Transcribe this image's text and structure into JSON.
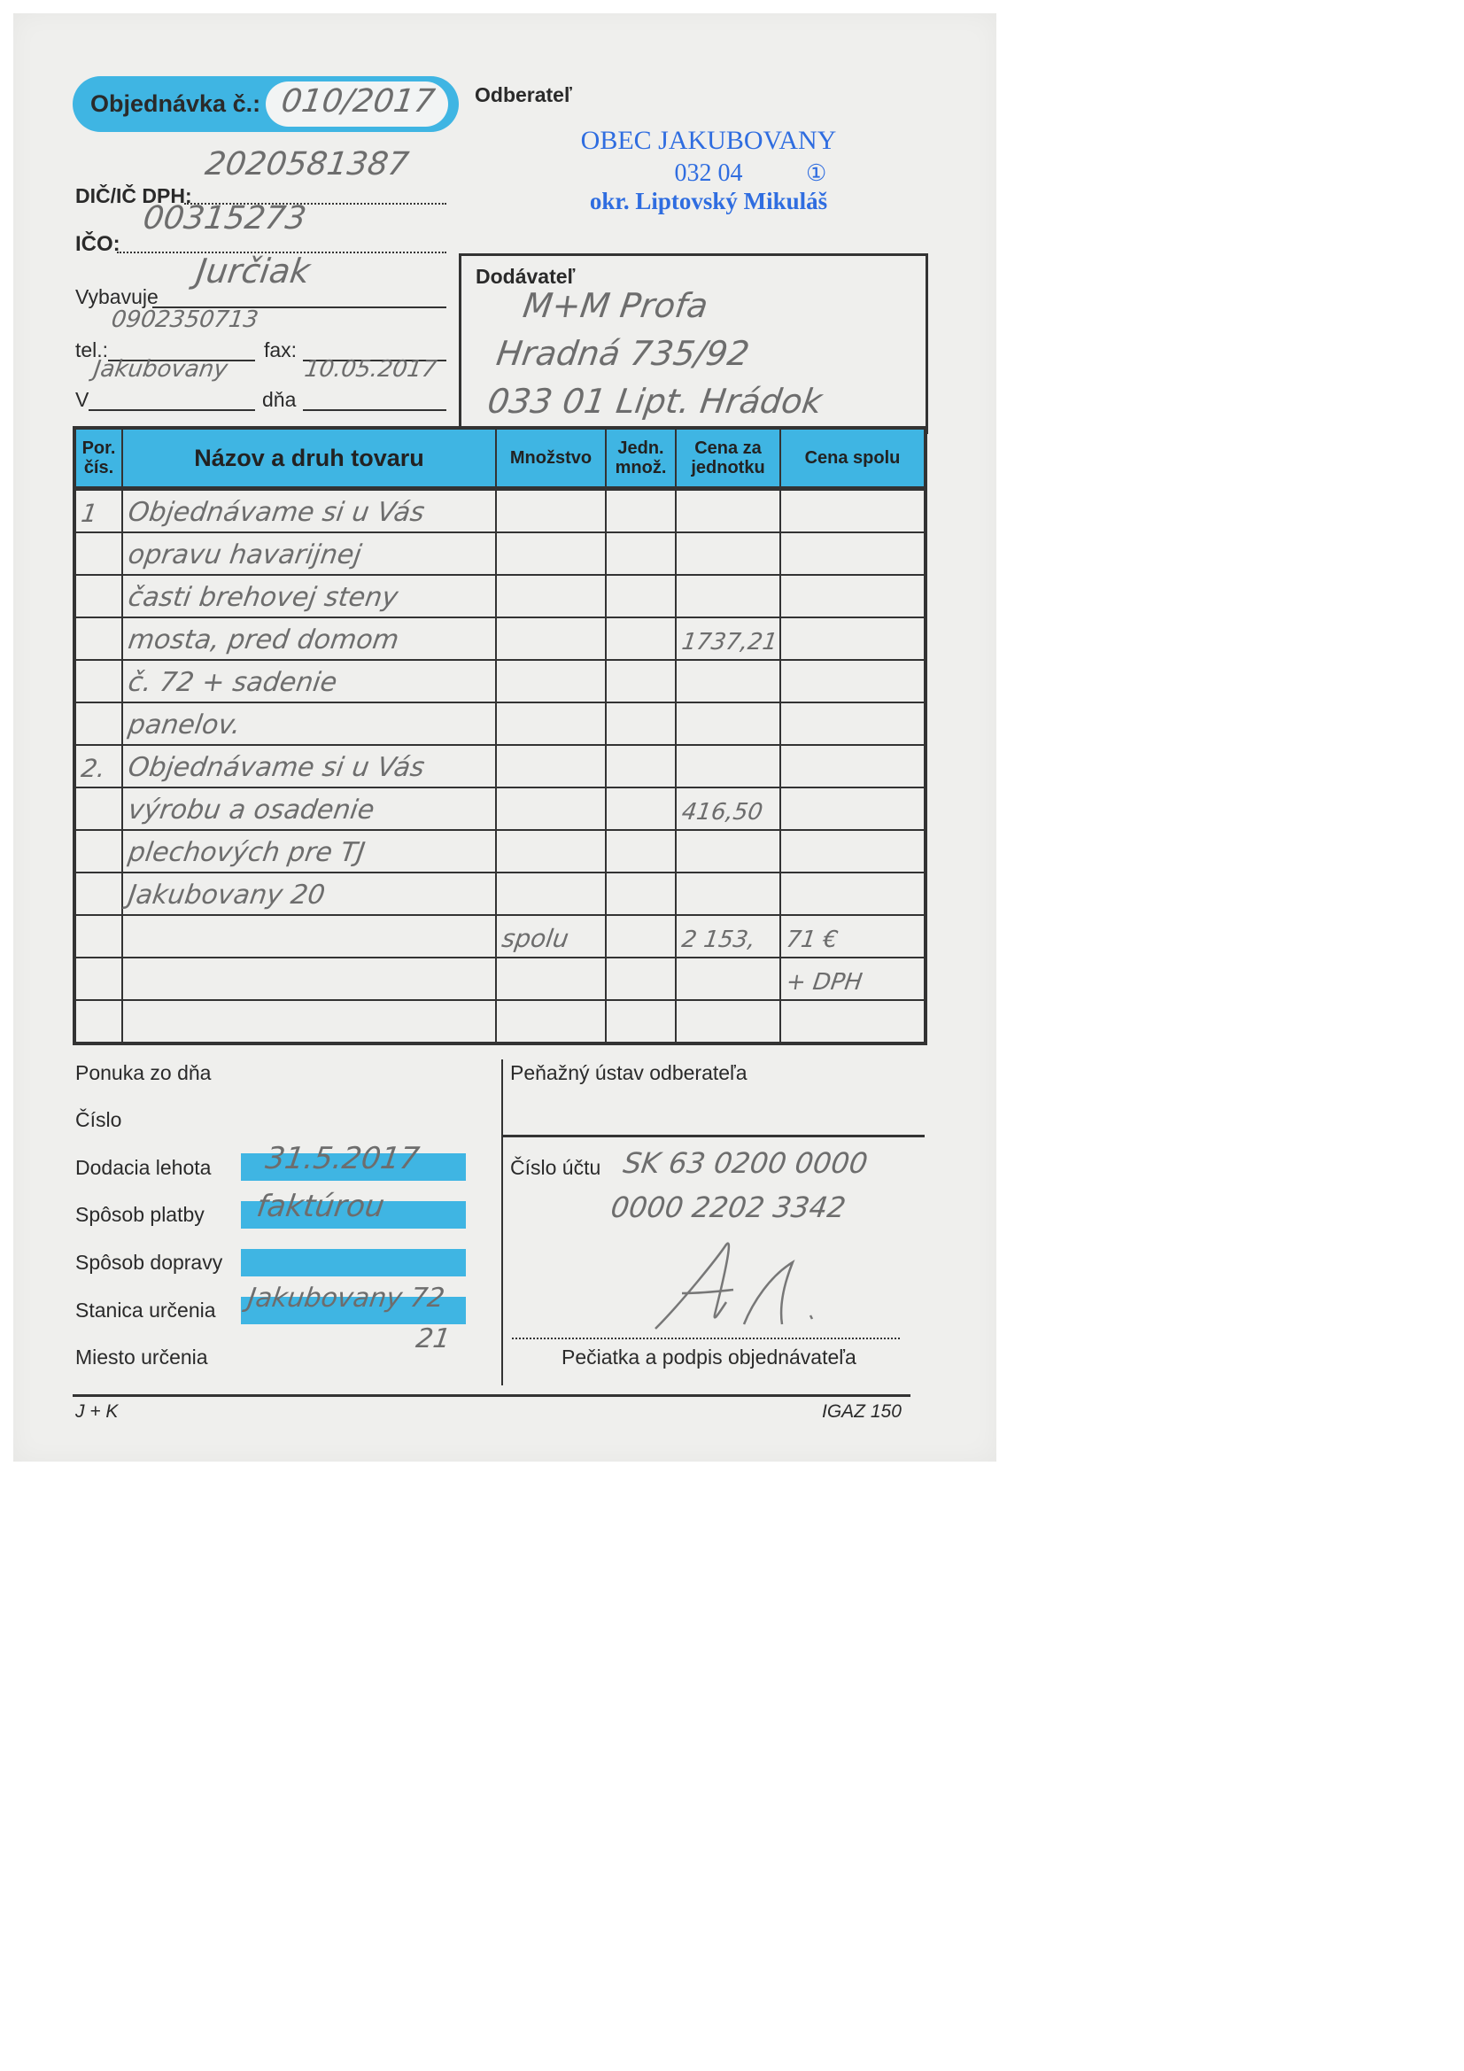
{
  "header": {
    "order_label": "Objednávka č.:",
    "order_number": "010/2017",
    "dic_label": "DIČ/IČ DPH:",
    "dic_value": "2020581387",
    "ico_label": "IČO:",
    "ico_value": "00315273",
    "vybavuje_label": "Vybavuje",
    "vybavuje_value": "Jurčiak",
    "tel_label": "tel.:",
    "tel_value": "0902350713",
    "fax_label": "fax:",
    "v_label": "V",
    "v_value": "Jakubovany",
    "dna_label": "dňa",
    "dna_value": "10.05.2017"
  },
  "odberatel": {
    "label": "Odberateľ",
    "stamp_line1": "OBEC JAKUBOVANY",
    "stamp_line2": "032 04",
    "stamp_mark": "①",
    "stamp_line3": "okr. Liptovský Mikuláš"
  },
  "dodavatel": {
    "label": "Dodávateľ",
    "line1": "M+M Profa",
    "line2": "Hradná 735/92",
    "line3": "033 01 Lipt. Hrádok"
  },
  "table": {
    "headers": [
      "Por. čís.",
      "Názov a druh tovaru",
      "Množstvo",
      "Jedn. množ.",
      "Cena za jednotku",
      "Cena spolu"
    ],
    "rows": [
      {
        "por": "1",
        "nazov": "Objednávame si u Vás",
        "mnozstvo": "",
        "jedn": "",
        "cena_za": "",
        "cena_spolu": ""
      },
      {
        "por": "",
        "nazov": "opravu havarijnej",
        "mnozstvo": "",
        "jedn": "",
        "cena_za": "",
        "cena_spolu": ""
      },
      {
        "por": "",
        "nazov": "časti brehovej steny",
        "mnozstvo": "",
        "jedn": "",
        "cena_za": "",
        "cena_spolu": ""
      },
      {
        "por": "",
        "nazov": "mosta, pred domom",
        "mnozstvo": "",
        "jedn": "",
        "cena_za": "1737,21",
        "cena_spolu": ""
      },
      {
        "por": "",
        "nazov": "č. 72 + sadenie",
        "mnozstvo": "",
        "jedn": "",
        "cena_za": "",
        "cena_spolu": ""
      },
      {
        "por": "",
        "nazov": "panelov.",
        "mnozstvo": "",
        "jedn": "",
        "cena_za": "",
        "cena_spolu": ""
      },
      {
        "por": "2.",
        "nazov": "Objednávame si u Vás",
        "mnozstvo": "",
        "jedn": "",
        "cena_za": "",
        "cena_spolu": ""
      },
      {
        "por": "",
        "nazov": "výrobu a osadenie",
        "mnozstvo": "",
        "jedn": "",
        "cena_za": "416,50",
        "cena_spolu": ""
      },
      {
        "por": "",
        "nazov": "plechových pre TJ",
        "mnozstvo": "",
        "jedn": "",
        "cena_za": "",
        "cena_spolu": ""
      },
      {
        "por": "",
        "nazov": "Jakubovany 20",
        "mnozstvo": "",
        "jedn": "",
        "cena_za": "",
        "cena_spolu": ""
      },
      {
        "por": "",
        "nazov": "",
        "mnozstvo": "spolu",
        "jedn": "",
        "cena_za": "2 153,",
        "cena_spolu": "71 €"
      },
      {
        "por": "",
        "nazov": "",
        "mnozstvo": "",
        "jedn": "",
        "cena_za": "",
        "cena_spolu": "+ DPH"
      },
      {
        "por": "",
        "nazov": "",
        "mnozstvo": "",
        "jedn": "",
        "cena_za": "",
        "cena_spolu": ""
      }
    ]
  },
  "footer_left": {
    "ponuka_label": "Ponuka zo dňa",
    "cislo_label": "Číslo",
    "dodacia_label": "Dodacia lehota",
    "dodacia_value": "31.5.2017",
    "platba_label": "Spôsob platby",
    "platba_value": "faktúrou",
    "doprava_label": "Spôsob dopravy",
    "stanica_label": "Stanica určenia",
    "stanica_value": "Jakubovany 72",
    "stanica_value2": "21",
    "miesto_label": "Miesto určenia"
  },
  "footer_right": {
    "bank_label": "Peňažný ústav odberateľa",
    "account_label": "Číslo účtu",
    "account_line1": "SK 63 0200 0000",
    "account_line2": "0000 2202 3342",
    "signature_label": "Pečiatka a podpis objednávateľa"
  },
  "bottom": {
    "left": "J + K",
    "right": "IGAZ 150"
  },
  "colors": {
    "form_blue": "#3fb5e3",
    "stamp_blue": "#2f6de0",
    "handwriting": "#6d6d6d"
  }
}
